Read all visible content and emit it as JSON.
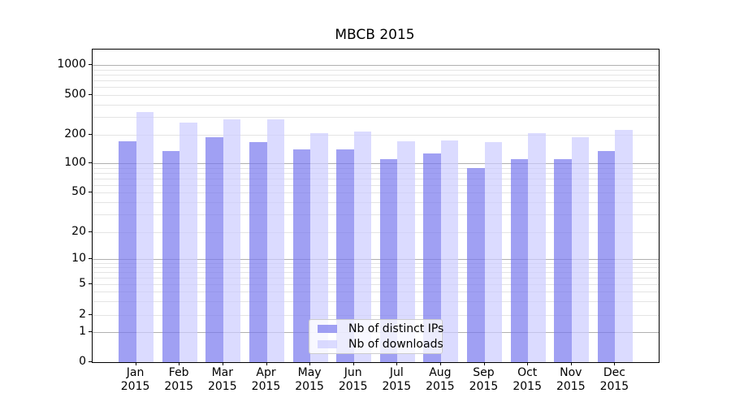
{
  "title": "MBCB 2015",
  "year_label": "2015",
  "legend": {
    "items": [
      {
        "label": "Nb of distinct IPs",
        "color": "rgba(119,119,238,0.7)"
      },
      {
        "label": "Nb of downloads",
        "color": "rgba(204,204,255,0.7)"
      }
    ]
  },
  "y_axis": {
    "tick_labels": [
      "1000",
      "500",
      "200",
      "100",
      "50",
      "20",
      "10",
      "5",
      "2",
      "1",
      "0"
    ],
    "tick_values": [
      1000,
      500,
      200,
      100,
      50,
      20,
      10,
      5,
      2,
      1,
      0
    ]
  },
  "chart_data": {
    "type": "bar",
    "title": "MBCB 2015",
    "categories": [
      "Jan 2015",
      "Feb 2015",
      "Mar 2015",
      "Apr 2015",
      "May 2015",
      "Jun 2015",
      "Jul 2015",
      "Aug 2015",
      "Sep 2015",
      "Oct 2015",
      "Nov 2015",
      "Dec 2015"
    ],
    "categories_months": [
      "Jan",
      "Feb",
      "Mar",
      "Apr",
      "May",
      "Jun",
      "Jul",
      "Aug",
      "Sep",
      "Oct",
      "Nov",
      "Dec"
    ],
    "series": [
      {
        "name": "Nb of distinct IPs",
        "color": "rgba(119,119,238,0.7)",
        "values": [
          172,
          136,
          187,
          167,
          141,
          140,
          111,
          127,
          89,
          111,
          111,
          135
        ]
      },
      {
        "name": "Nb of downloads",
        "color": "rgba(204,204,255,0.7)",
        "values": [
          340,
          264,
          284,
          287,
          207,
          216,
          171,
          174,
          168,
          206,
          190,
          222
        ]
      }
    ],
    "xlabel": "",
    "ylabel": "",
    "yscale": "symlog-like (log axis including 0)",
    "yticks": [
      0,
      1,
      2,
      5,
      10,
      20,
      50,
      100,
      200,
      500,
      1000
    ],
    "ylim": [
      0,
      1400
    ],
    "grid": "horizontal, major (decades) dark + minor light, bars semi-transparent above grid",
    "legend_position": "inside lower-center"
  }
}
